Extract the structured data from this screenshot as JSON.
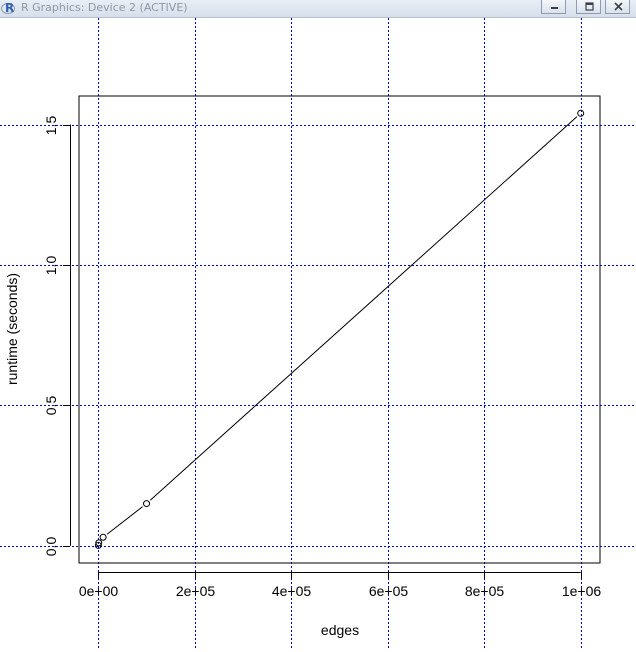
{
  "window": {
    "title": "R Graphics: Device 2 (ACTIVE)",
    "icon": "r-logo-icon",
    "buttons": [
      "minimize-icon",
      "restore-icon",
      "close-icon"
    ]
  },
  "chart_data": {
    "type": "line",
    "markers": "open-circle",
    "xlabel": "edges",
    "ylabel": "runtime (seconds)",
    "xlim": [
      -40000,
      1040000
    ],
    "ylim": [
      -0.0616,
      1.6016
    ],
    "xticks": [
      0,
      200000,
      400000,
      600000,
      800000,
      1000000
    ],
    "xtick_labels": [
      "0e+00",
      "2e+05",
      "4e+05",
      "6e+05",
      "8e+05",
      "1e+06"
    ],
    "yticks": [
      0.0,
      0.5,
      1.0,
      1.5
    ],
    "ytick_labels": [
      "0.0",
      "0.5",
      "1.0",
      "1.5"
    ],
    "grid": true,
    "grid_color": "#0000cc",
    "line_color": "#000000",
    "x": [
      100,
      1000,
      10000,
      100000,
      1000000
    ],
    "y": [
      0.001,
      0.01,
      0.03,
      0.15,
      1.54
    ]
  }
}
